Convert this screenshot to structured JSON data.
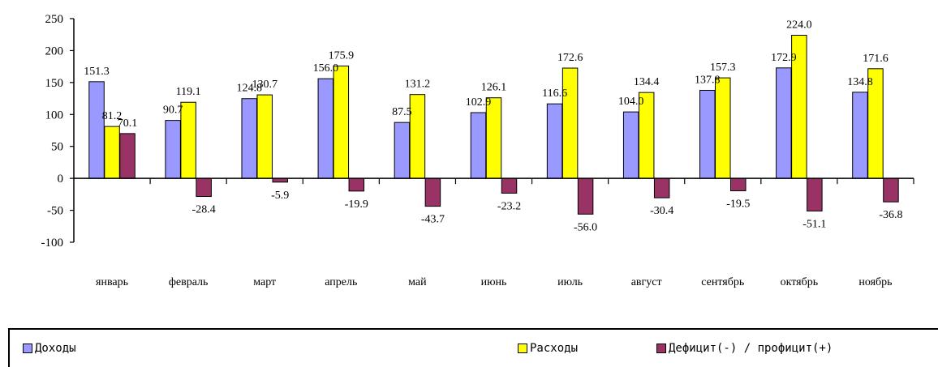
{
  "chart_data": {
    "type": "bar",
    "categories": [
      "январь",
      "февраль",
      "март",
      "апрель",
      "май",
      "июнь",
      "июль",
      "август",
      "сентябрь",
      "октябрь",
      "ноябрь"
    ],
    "series": [
      {
        "name": "Доходы",
        "color": "#9999ff",
        "values": [
          151.3,
          90.7,
          124.8,
          156.0,
          87.5,
          102.9,
          116.6,
          104.0,
          137.8,
          172.9,
          134.8
        ]
      },
      {
        "name": "Расходы",
        "color": "#ffff00",
        "values": [
          81.2,
          119.1,
          130.7,
          175.9,
          131.2,
          126.1,
          172.6,
          134.4,
          157.3,
          224.0,
          171.6
        ]
      },
      {
        "name": "Дефицит(-) / профицит(+)",
        "color": "#993366",
        "values": [
          70.1,
          -28.4,
          -5.9,
          -19.9,
          -43.7,
          -23.2,
          -56.0,
          -30.4,
          -19.5,
          -51.1,
          -36.8
        ]
      }
    ],
    "value_labels": [
      [
        "151.3",
        "90.7",
        "124.8",
        "156.0",
        "87.5",
        "102.9",
        "116.6",
        "104.0",
        "137.8",
        "172.9",
        "134.8"
      ],
      [
        "81.2",
        "119.1",
        "130.7",
        "175.9",
        "131.2",
        "126.1",
        "172.6",
        "134.4",
        "157.3",
        "224.0",
        "171.6"
      ],
      [
        "70.1",
        "-28.4",
        "-5.9",
        "-19.9",
        "-43.7",
        "-23.2",
        "-56.0",
        "-30.4",
        "-19.5",
        "-51.1",
        "-36.8"
      ]
    ],
    "y_ticks": [
      "250",
      "200",
      "150",
      "100",
      "50",
      "0",
      "-50",
      "-100"
    ],
    "ylim": [
      -100,
      250
    ],
    "legend_position": "bottom",
    "grid": false
  },
  "legend": {
    "items": [
      {
        "label": "Доходы",
        "color": "#9999ff"
      },
      {
        "label": "Расходы",
        "color": "#ffff00"
      },
      {
        "label": "Дефицит(-) / профицит(+)",
        "color": "#993366"
      }
    ]
  }
}
